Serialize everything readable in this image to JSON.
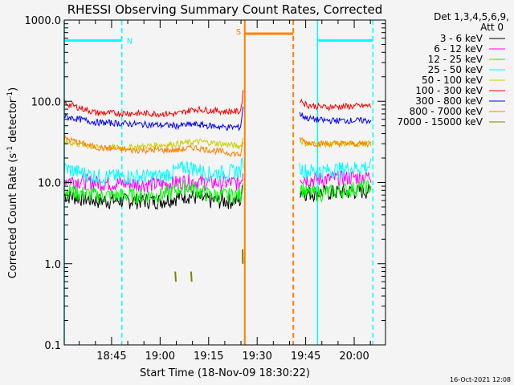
{
  "chart_data": {
    "type": "line",
    "title": "RHESSI Observing Summary Count Rates, Corrected",
    "xlabel": "Start Time (18-Nov-09 18:30:22)",
    "ylabel": "Corrected Count Rate (s",
    "ylabel_sup1": "-1",
    "ylabel_mid": " detector",
    "ylabel_end": ")",
    "yscale": "log",
    "ylim": [
      0.1,
      1000
    ],
    "xlim_minutes_from_start": [
      0,
      99.3
    ],
    "yticks": [
      "1000.0",
      "100.0",
      "10.0",
      "1.0",
      "0.1"
    ],
    "ytick_values": [
      1000,
      100,
      10,
      1,
      0.1
    ],
    "xticks": [
      "18:45",
      "19:00",
      "19:15",
      "19:30",
      "19:45",
      "20:00"
    ],
    "xtick_minutes": [
      14.63,
      29.63,
      44.63,
      59.63,
      74.63,
      89.63
    ],
    "legend_header": [
      "Det 1,3,4,5,6,9,",
      "Att 0"
    ],
    "legend_placement": "top-right outside",
    "series": [
      {
        "name": "3 - 6 keV",
        "color": "#000000",
        "x": [
          0,
          10,
          30,
          38,
          45,
          54.5,
          55.3
        ],
        "y": [
          7,
          6,
          6,
          7,
          6,
          6,
          9
        ],
        "x2": [
          72.8,
          75,
          80,
          95
        ],
        "y2": [
          8,
          7.5,
          7.5,
          8
        ]
      },
      {
        "name": "6 - 12 keV",
        "color": "#ff00ff",
        "x": [
          0,
          10,
          30,
          38,
          45,
          54.5,
          55.3
        ],
        "y": [
          11,
          10,
          9.5,
          10.5,
          10,
          10,
          14
        ],
        "x2": [
          72.8,
          75,
          80,
          95
        ],
        "y2": [
          12,
          11,
          11,
          12
        ]
      },
      {
        "name": "12 - 25 keV",
        "color": "#00ff00",
        "x": [
          0,
          10,
          30,
          38,
          45,
          54.5,
          55.3
        ],
        "y": [
          8,
          7,
          7,
          9,
          7,
          7,
          10
        ],
        "x2": [
          72.8,
          75,
          80,
          95
        ],
        "y2": [
          9,
          7.5,
          7.5,
          9
        ]
      },
      {
        "name": "25 - 50 keV",
        "color": "#00ffff",
        "x": [
          0,
          10,
          30,
          38,
          45,
          54.5,
          55.3
        ],
        "y": [
          15,
          12,
          12,
          16,
          13,
          14,
          20
        ],
        "x2": [
          72.8,
          75,
          80,
          95
        ],
        "y2": [
          15,
          14,
          14,
          16
        ]
      },
      {
        "name": "50 - 100 keV",
        "color": "#cccc00",
        "x": [
          0,
          10,
          20,
          35,
          42,
          54.5,
          55.3
        ],
        "y": [
          32,
          27,
          27,
          30,
          32,
          28,
          35
        ],
        "x2": [
          72.8,
          75,
          80,
          95
        ],
        "y2": [
          33,
          30,
          30,
          30
        ]
      },
      {
        "name": "100 - 300 keV",
        "color": "#ff0000",
        "x": [
          0,
          10,
          35,
          40,
          50,
          54.5,
          55.3
        ],
        "y": [
          95,
          72,
          70,
          80,
          75,
          75,
          130
        ],
        "x2": [
          72.8,
          75,
          80,
          95
        ],
        "y2": [
          105,
          90,
          85,
          88
        ]
      },
      {
        "name": "300 - 800 keV",
        "color": "#0000ff",
        "x": [
          0,
          10,
          35,
          40,
          50,
          54.5,
          55.3
        ],
        "y": [
          65,
          55,
          50,
          52,
          48,
          48,
          90
        ],
        "x2": [
          72.8,
          75,
          80,
          95
        ],
        "y2": [
          70,
          62,
          58,
          58
        ]
      },
      {
        "name": "800 - 7000 keV",
        "color": "#ff8000",
        "x": [
          0,
          10,
          20,
          35,
          40,
          54.5,
          55.3
        ],
        "y": [
          35,
          27,
          25,
          25,
          27,
          22,
          30
        ],
        "x2": [
          72.8,
          75,
          80,
          95
        ],
        "y2": [
          35,
          31,
          30,
          30
        ]
      },
      {
        "name": "7000 - 15000 keV",
        "color": "#808000",
        "x": [
          34.3,
          34.5,
          39.2,
          39.4,
          55.1,
          55.2
        ],
        "y": [
          0.8,
          0.6,
          0.8,
          0.6,
          1.5,
          1.0
        ],
        "x2": [],
        "y2": []
      }
    ],
    "annotations": [
      {
        "label": "N",
        "color": "#00ffff",
        "bar_minutes": [
          0,
          17.8
        ],
        "level": 560,
        "dashed_line_minute": 17.8,
        "solid_line_minute": 0
      },
      {
        "label": "S",
        "color": "#ff8000",
        "bar_minutes": [
          55.8,
          70.8
        ],
        "level": 680,
        "solid_line_minute": 55.8,
        "dashed_line_minute": 70.8
      },
      {
        "label": "",
        "color": "#00ffff",
        "bar_minutes": [
          78.3,
          95.4
        ],
        "level": 560,
        "solid_line_minute": 78.3,
        "dashed_line_minute": 95.4
      }
    ]
  },
  "footer": {
    "timestamp": "16-Oct-2021 12:08"
  }
}
